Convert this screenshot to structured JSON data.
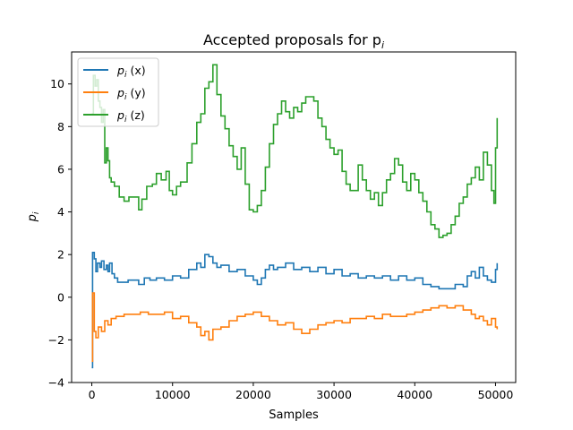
{
  "chart_data": {
    "type": "line",
    "title": "Accepted proposals for p",
    "title_sub": "i",
    "xlabel": "Samples",
    "ylabel": "p",
    "ylabel_sub": "i",
    "xlim": [
      -2500,
      52500
    ],
    "ylim": [
      -4,
      11.5
    ],
    "xticks": [
      0,
      10000,
      20000,
      30000,
      40000,
      50000
    ],
    "xtick_labels": [
      "0",
      "10000",
      "20000",
      "30000",
      "40000",
      "50000"
    ],
    "yticks": [
      -4,
      -2,
      0,
      2,
      4,
      6,
      8,
      10
    ],
    "ytick_labels": [
      "−4",
      "−2",
      "0",
      "2",
      "4",
      "6",
      "8",
      "10"
    ],
    "grid": false,
    "legend_position": "top-left",
    "series": [
      {
        "name": "p (x)",
        "name_main": "p",
        "name_sub": "i",
        "name_rest": "(x)",
        "color": "#1f77b4",
        "points": [
          [
            0,
            -3.3
          ],
          [
            100,
            2.1
          ],
          [
            300,
            1.8
          ],
          [
            500,
            1.2
          ],
          [
            700,
            1.6
          ],
          [
            1000,
            1.4
          ],
          [
            1200,
            1.7
          ],
          [
            1500,
            1.3
          ],
          [
            1800,
            1.5
          ],
          [
            2000,
            1.2
          ],
          [
            2200,
            1.6
          ],
          [
            2500,
            1.1
          ],
          [
            2800,
            0.9
          ],
          [
            3200,
            0.7
          ],
          [
            3800,
            0.7
          ],
          [
            4500,
            0.8
          ],
          [
            5200,
            0.8
          ],
          [
            5800,
            0.6
          ],
          [
            6500,
            0.9
          ],
          [
            7200,
            0.8
          ],
          [
            8000,
            0.9
          ],
          [
            9000,
            0.8
          ],
          [
            10000,
            1.0
          ],
          [
            11000,
            0.9
          ],
          [
            12000,
            1.3
          ],
          [
            13000,
            1.6
          ],
          [
            13500,
            1.4
          ],
          [
            14000,
            2.0
          ],
          [
            14500,
            1.9
          ],
          [
            15000,
            1.6
          ],
          [
            15500,
            1.4
          ],
          [
            16000,
            1.5
          ],
          [
            17000,
            1.2
          ],
          [
            18000,
            1.3
          ],
          [
            19000,
            1.0
          ],
          [
            20000,
            0.8
          ],
          [
            20500,
            0.6
          ],
          [
            21000,
            0.9
          ],
          [
            21500,
            1.3
          ],
          [
            22000,
            1.5
          ],
          [
            22500,
            1.3
          ],
          [
            23000,
            1.4
          ],
          [
            24000,
            1.6
          ],
          [
            25000,
            1.3
          ],
          [
            26000,
            1.4
          ],
          [
            27000,
            1.2
          ],
          [
            28000,
            1.4
          ],
          [
            29000,
            1.1
          ],
          [
            30000,
            1.3
          ],
          [
            31000,
            1.0
          ],
          [
            32000,
            1.1
          ],
          [
            33000,
            0.9
          ],
          [
            34000,
            1.0
          ],
          [
            35000,
            0.9
          ],
          [
            36000,
            1.0
          ],
          [
            37000,
            0.8
          ],
          [
            38000,
            1.0
          ],
          [
            39000,
            0.8
          ],
          [
            40000,
            0.9
          ],
          [
            41000,
            0.6
          ],
          [
            42000,
            0.5
          ],
          [
            43000,
            0.4
          ],
          [
            44000,
            0.4
          ],
          [
            45000,
            0.6
          ],
          [
            46000,
            0.5
          ],
          [
            46500,
            1.0
          ],
          [
            47000,
            1.2
          ],
          [
            47500,
            0.9
          ],
          [
            48000,
            1.4
          ],
          [
            48500,
            1.0
          ],
          [
            49000,
            0.8
          ],
          [
            49500,
            0.7
          ],
          [
            50000,
            1.3
          ],
          [
            50200,
            1.6
          ]
        ]
      },
      {
        "name": "p (y)",
        "name_main": "p",
        "name_sub": "i",
        "name_rest": "(y)",
        "color": "#ff7f0e",
        "points": [
          [
            0,
            -3.0
          ],
          [
            100,
            0.2
          ],
          [
            300,
            -1.6
          ],
          [
            500,
            -1.9
          ],
          [
            800,
            -1.4
          ],
          [
            1200,
            -1.6
          ],
          [
            1600,
            -1.1
          ],
          [
            2000,
            -1.3
          ],
          [
            2400,
            -1.0
          ],
          [
            3000,
            -0.9
          ],
          [
            4000,
            -0.8
          ],
          [
            5000,
            -0.8
          ],
          [
            6000,
            -0.7
          ],
          [
            7000,
            -0.8
          ],
          [
            8000,
            -0.8
          ],
          [
            9000,
            -0.7
          ],
          [
            10000,
            -1.0
          ],
          [
            11000,
            -0.9
          ],
          [
            12000,
            -1.2
          ],
          [
            13000,
            -1.4
          ],
          [
            13500,
            -1.8
          ],
          [
            14000,
            -1.6
          ],
          [
            14500,
            -2.0
          ],
          [
            15000,
            -1.5
          ],
          [
            16000,
            -1.4
          ],
          [
            17000,
            -1.1
          ],
          [
            18000,
            -0.9
          ],
          [
            19000,
            -0.8
          ],
          [
            20000,
            -0.7
          ],
          [
            21000,
            -0.9
          ],
          [
            22000,
            -1.1
          ],
          [
            23000,
            -1.3
          ],
          [
            24000,
            -1.2
          ],
          [
            25000,
            -1.5
          ],
          [
            26000,
            -1.7
          ],
          [
            27000,
            -1.5
          ],
          [
            28000,
            -1.3
          ],
          [
            29000,
            -1.2
          ],
          [
            30000,
            -1.1
          ],
          [
            31000,
            -1.2
          ],
          [
            32000,
            -1.0
          ],
          [
            33000,
            -1.0
          ],
          [
            34000,
            -0.9
          ],
          [
            35000,
            -1.0
          ],
          [
            36000,
            -0.8
          ],
          [
            37000,
            -0.9
          ],
          [
            38000,
            -0.9
          ],
          [
            39000,
            -0.8
          ],
          [
            40000,
            -0.7
          ],
          [
            41000,
            -0.6
          ],
          [
            42000,
            -0.5
          ],
          [
            43000,
            -0.4
          ],
          [
            44000,
            -0.5
          ],
          [
            45000,
            -0.4
          ],
          [
            46000,
            -0.6
          ],
          [
            47000,
            -0.8
          ],
          [
            47500,
            -1.0
          ],
          [
            48000,
            -0.9
          ],
          [
            48500,
            -1.1
          ],
          [
            49000,
            -1.3
          ],
          [
            49500,
            -1.0
          ],
          [
            50000,
            -1.4
          ],
          [
            50200,
            -1.5
          ]
        ]
      },
      {
        "name": "p (z)",
        "name_main": "p",
        "name_sub": "i",
        "name_rest": "(z)",
        "color": "#2ca02c",
        "points": [
          [
            0,
            8.6
          ],
          [
            200,
            10.4
          ],
          [
            400,
            9.9
          ],
          [
            600,
            10.2
          ],
          [
            800,
            9.2
          ],
          [
            1000,
            8.9
          ],
          [
            1200,
            8.2
          ],
          [
            1400,
            8.8
          ],
          [
            1600,
            6.3
          ],
          [
            1800,
            7.0
          ],
          [
            2000,
            6.4
          ],
          [
            2200,
            5.6
          ],
          [
            2400,
            5.4
          ],
          [
            2800,
            5.2
          ],
          [
            3400,
            4.7
          ],
          [
            4000,
            4.5
          ],
          [
            4600,
            4.7
          ],
          [
            5400,
            4.7
          ],
          [
            5800,
            4.1
          ],
          [
            6200,
            4.6
          ],
          [
            6800,
            5.2
          ],
          [
            7500,
            5.3
          ],
          [
            8000,
            5.8
          ],
          [
            8600,
            5.5
          ],
          [
            9200,
            5.9
          ],
          [
            9600,
            5.0
          ],
          [
            10000,
            4.8
          ],
          [
            10500,
            5.2
          ],
          [
            11000,
            5.4
          ],
          [
            11800,
            6.3
          ],
          [
            12400,
            7.2
          ],
          [
            13000,
            8.2
          ],
          [
            13500,
            8.6
          ],
          [
            14000,
            9.8
          ],
          [
            14500,
            10.1
          ],
          [
            15000,
            10.9
          ],
          [
            15500,
            9.5
          ],
          [
            16000,
            8.5
          ],
          [
            16500,
            7.9
          ],
          [
            17000,
            7.1
          ],
          [
            17500,
            6.6
          ],
          [
            18000,
            6.0
          ],
          [
            18500,
            7.0
          ],
          [
            19000,
            5.3
          ],
          [
            19500,
            4.1
          ],
          [
            20000,
            4.0
          ],
          [
            20500,
            4.3
          ],
          [
            21000,
            5.0
          ],
          [
            21500,
            6.1
          ],
          [
            22000,
            7.2
          ],
          [
            22500,
            8.1
          ],
          [
            23000,
            8.6
          ],
          [
            23500,
            9.2
          ],
          [
            24000,
            8.7
          ],
          [
            24500,
            8.4
          ],
          [
            25000,
            8.9
          ],
          [
            25500,
            8.7
          ],
          [
            26000,
            9.1
          ],
          [
            26500,
            9.4
          ],
          [
            27000,
            9.4
          ],
          [
            27500,
            9.2
          ],
          [
            28000,
            8.4
          ],
          [
            28500,
            8.0
          ],
          [
            29000,
            7.4
          ],
          [
            29500,
            7.0
          ],
          [
            30000,
            6.7
          ],
          [
            30500,
            6.9
          ],
          [
            31000,
            5.9
          ],
          [
            31500,
            5.3
          ],
          [
            32000,
            5.0
          ],
          [
            32500,
            5.0
          ],
          [
            33000,
            6.2
          ],
          [
            33500,
            5.5
          ],
          [
            34000,
            5.0
          ],
          [
            34500,
            4.6
          ],
          [
            35000,
            4.9
          ],
          [
            35500,
            4.3
          ],
          [
            36000,
            4.9
          ],
          [
            36500,
            5.5
          ],
          [
            37000,
            5.8
          ],
          [
            37500,
            6.5
          ],
          [
            38000,
            6.2
          ],
          [
            38500,
            5.4
          ],
          [
            39000,
            5.0
          ],
          [
            39500,
            5.8
          ],
          [
            40000,
            5.5
          ],
          [
            40500,
            4.9
          ],
          [
            41000,
            4.5
          ],
          [
            41500,
            4.0
          ],
          [
            42000,
            3.4
          ],
          [
            42500,
            3.2
          ],
          [
            43000,
            2.8
          ],
          [
            43500,
            2.9
          ],
          [
            44000,
            3.0
          ],
          [
            44500,
            3.4
          ],
          [
            45000,
            3.8
          ],
          [
            45500,
            4.4
          ],
          [
            46000,
            4.7
          ],
          [
            46500,
            5.3
          ],
          [
            47000,
            5.6
          ],
          [
            47500,
            6.1
          ],
          [
            48000,
            5.5
          ],
          [
            48500,
            6.8
          ],
          [
            49000,
            6.2
          ],
          [
            49500,
            5.0
          ],
          [
            49800,
            4.4
          ],
          [
            50000,
            7.0
          ],
          [
            50200,
            8.4
          ]
        ]
      }
    ]
  }
}
